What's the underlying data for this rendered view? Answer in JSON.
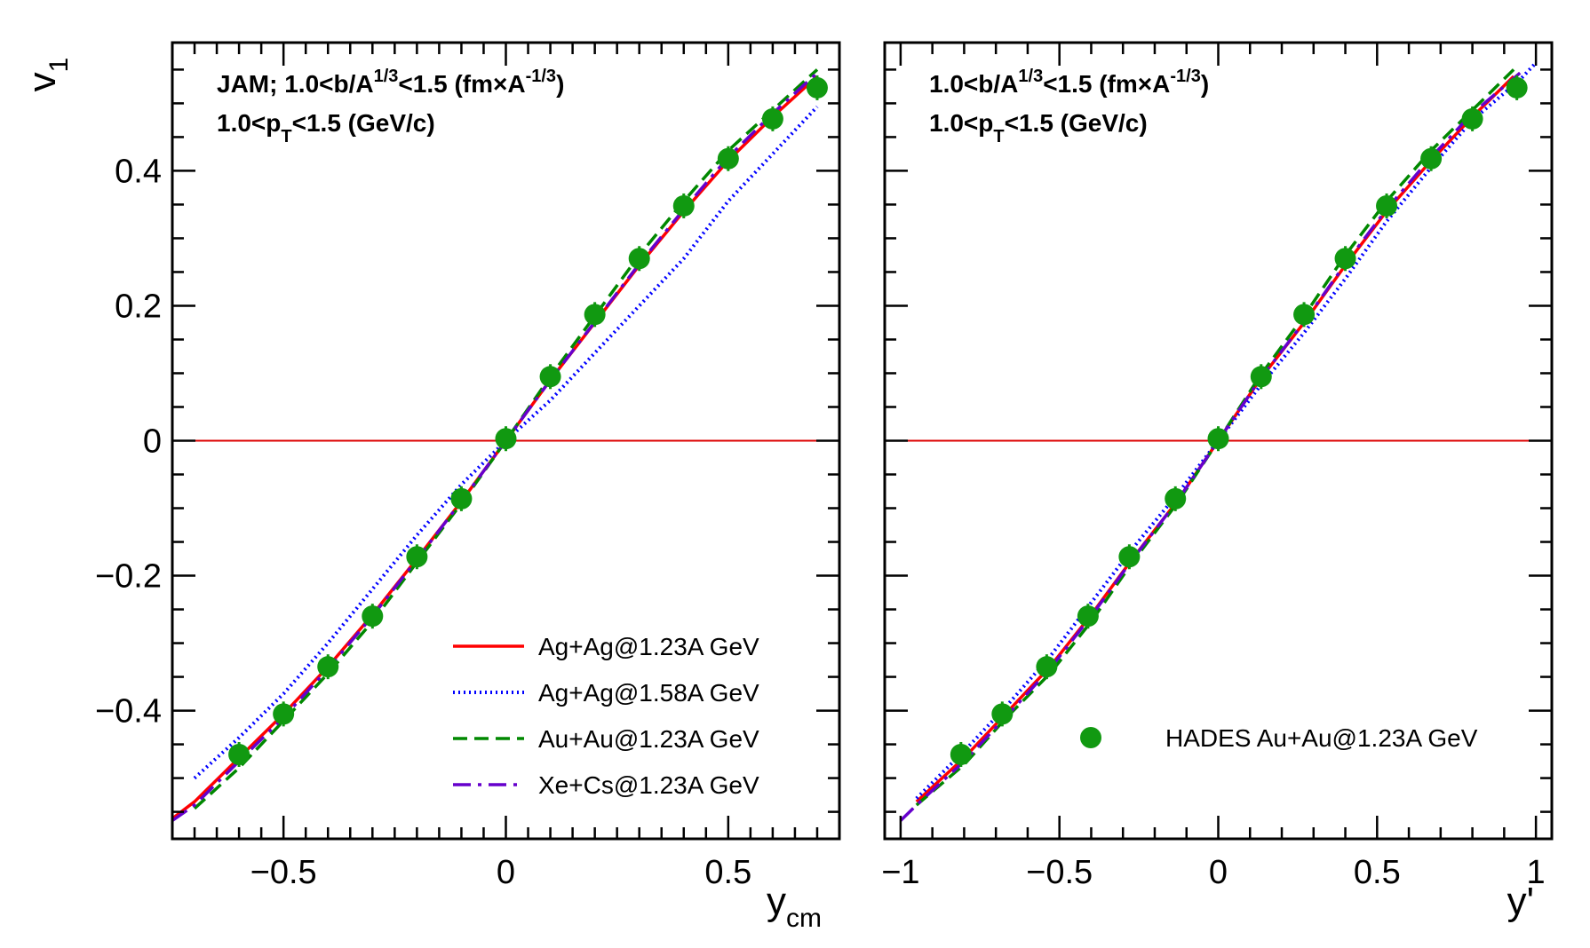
{
  "chart_data": [
    {
      "type": "line",
      "xlabel": "y",
      "xlabel_sub": "cm",
      "ylabel": "v",
      "ylabel_sub": "1",
      "xlim": [
        -0.75,
        0.75
      ],
      "ylim": [
        -0.59,
        0.59
      ],
      "xticks": [
        {
          "v": -0.5,
          "label": "−0.5"
        },
        {
          "v": 0,
          "label": "0"
        },
        {
          "v": 0.5,
          "label": "0.5"
        }
      ],
      "yticks": [
        {
          "v": 0.4,
          "label": "0.4"
        },
        {
          "v": 0.2,
          "label": "0.2"
        },
        {
          "v": 0,
          "label": "0"
        },
        {
          "v": -0.2,
          "label": "−0.2"
        },
        {
          "v": -0.4,
          "label": "−0.4"
        }
      ],
      "annotation_line1": {
        "main": "JAM; 1.0<b/A",
        "sup1": "1/3",
        "mid": "<1.5 (fm×A",
        "sup2": "-1/3",
        "end": ")"
      },
      "annotation_line2": {
        "main": "1.0<p",
        "sub": "T",
        "end": "<1.5 (GeV/c)"
      },
      "legend": "bottom-right",
      "reference_line_y": 0,
      "series": [
        {
          "name": "Ag+Ag@1.23A GeV",
          "color": "#ff0000",
          "style": "solid",
          "x": [
            -0.75,
            -0.7,
            -0.6,
            -0.5,
            -0.4,
            -0.3,
            -0.2,
            -0.1,
            0,
            0.1,
            0.2,
            0.3,
            0.4,
            0.5,
            0.6,
            0.7
          ],
          "y": [
            -0.56,
            -0.535,
            -0.47,
            -0.405,
            -0.335,
            -0.258,
            -0.175,
            -0.09,
            0,
            0.09,
            0.175,
            0.26,
            0.34,
            0.415,
            0.48,
            0.54
          ]
        },
        {
          "name": "Ag+Ag@1.58A GeV",
          "color": "#0000ff",
          "style": "dotted",
          "x": [
            -0.7,
            -0.6,
            -0.5,
            -0.4,
            -0.3,
            -0.2,
            -0.1,
            0,
            0.1,
            0.2,
            0.3,
            0.4,
            0.5,
            0.6,
            0.7
          ],
          "y": [
            -0.5,
            -0.44,
            -0.375,
            -0.3,
            -0.22,
            -0.14,
            -0.065,
            0,
            0.06,
            0.13,
            0.2,
            0.27,
            0.355,
            0.425,
            0.495
          ]
        },
        {
          "name": "Au+Au@1.23A GeV",
          "color": "#008800",
          "style": "dashed",
          "x": [
            -0.7,
            -0.6,
            -0.5,
            -0.4,
            -0.3,
            -0.2,
            -0.1,
            0,
            0.1,
            0.2,
            0.3,
            0.4,
            0.5,
            0.6,
            0.7
          ],
          "y": [
            -0.545,
            -0.485,
            -0.415,
            -0.345,
            -0.268,
            -0.18,
            -0.093,
            0,
            0.095,
            0.185,
            0.275,
            0.355,
            0.43,
            0.49,
            0.55
          ]
        },
        {
          "name": "Xe+Cs@1.23A GeV",
          "color": "#6600cc",
          "style": "dashdot",
          "x": [
            -0.75,
            -0.7,
            -0.6,
            -0.5,
            -0.4,
            -0.3,
            -0.2,
            -0.1,
            0,
            0.1,
            0.2,
            0.3,
            0.4,
            0.5,
            0.6,
            0.7
          ],
          "y": [
            -0.563,
            -0.54,
            -0.475,
            -0.41,
            -0.338,
            -0.26,
            -0.176,
            -0.09,
            0,
            0.09,
            0.176,
            0.262,
            0.343,
            0.42,
            0.485,
            0.545
          ]
        },
        {
          "name": "",
          "color": "#119911",
          "style": "marker",
          "x": [
            -0.6,
            -0.5,
            -0.4,
            -0.3,
            -0.2,
            -0.1,
            0,
            0.1,
            0.2,
            0.3,
            0.4,
            0.5,
            0.6,
            0.7
          ],
          "y": [
            -0.465,
            -0.405,
            -0.335,
            -0.26,
            -0.172,
            -0.086,
            0.003,
            0.095,
            0.187,
            0.27,
            0.348,
            0.418,
            0.477,
            0.523
          ]
        }
      ]
    },
    {
      "type": "line",
      "xlabel": "y'",
      "ylabel": "",
      "xlim": [
        -1.05,
        1.05
      ],
      "ylim": [
        -0.59,
        0.59
      ],
      "xticks": [
        {
          "v": -1,
          "label": "−1"
        },
        {
          "v": -0.5,
          "label": "−0.5"
        },
        {
          "v": 0,
          "label": "0"
        },
        {
          "v": 0.5,
          "label": "0.5"
        },
        {
          "v": 1,
          "label": "1"
        }
      ],
      "yticks": [
        {
          "v": 0.4,
          "label": ""
        },
        {
          "v": 0.2,
          "label": ""
        },
        {
          "v": 0,
          "label": ""
        },
        {
          "v": -0.2,
          "label": ""
        },
        {
          "v": -0.4,
          "label": ""
        }
      ],
      "annotation_line1": {
        "main": "1.0<b/A",
        "sup1": "1/3",
        "mid": "<1.5 (fm×A",
        "sup2": "-1/3",
        "end": ")"
      },
      "annotation_line2": {
        "main": "1.0<p",
        "sub": "T",
        "end": "<1.5 (GeV/c)"
      },
      "legend": "bottom-right",
      "reference_line_y": 0,
      "series": [
        {
          "name": "",
          "color": "#ff0000",
          "style": "solid",
          "x": [
            -0.95,
            -0.8,
            -0.67,
            -0.53,
            -0.4,
            -0.27,
            -0.13,
            0,
            0.13,
            0.27,
            0.4,
            0.53,
            0.67,
            0.8,
            0.93
          ],
          "y": [
            -0.535,
            -0.47,
            -0.405,
            -0.335,
            -0.258,
            -0.175,
            -0.09,
            0,
            0.09,
            0.175,
            0.26,
            0.34,
            0.415,
            0.48,
            0.54
          ]
        },
        {
          "name": "",
          "color": "#0000ff",
          "style": "dotted",
          "x": [
            -0.95,
            -0.8,
            -0.67,
            -0.53,
            -0.4,
            -0.27,
            -0.13,
            0,
            0.13,
            0.27,
            0.4,
            0.53,
            0.67,
            0.8,
            0.95,
            1.0
          ],
          "y": [
            -0.53,
            -0.46,
            -0.395,
            -0.32,
            -0.24,
            -0.16,
            -0.08,
            0,
            0.08,
            0.16,
            0.24,
            0.325,
            0.405,
            0.475,
            0.535,
            0.56
          ]
        },
        {
          "name": "",
          "color": "#008800",
          "style": "dashed",
          "x": [
            -0.95,
            -0.8,
            -0.67,
            -0.53,
            -0.4,
            -0.27,
            -0.13,
            0,
            0.13,
            0.27,
            0.4,
            0.53,
            0.67,
            0.8,
            0.93
          ],
          "y": [
            -0.54,
            -0.48,
            -0.412,
            -0.345,
            -0.268,
            -0.18,
            -0.093,
            0,
            0.095,
            0.185,
            0.275,
            0.355,
            0.43,
            0.49,
            0.55
          ]
        },
        {
          "name": "",
          "color": "#6600cc",
          "style": "dashdot",
          "x": [
            -1.0,
            -0.95,
            -0.8,
            -0.67,
            -0.53,
            -0.4,
            -0.27,
            -0.13,
            0,
            0.13,
            0.27,
            0.4,
            0.53,
            0.67,
            0.8,
            0.95
          ],
          "y": [
            -0.563,
            -0.54,
            -0.475,
            -0.41,
            -0.338,
            -0.26,
            -0.176,
            -0.09,
            0,
            0.09,
            0.176,
            0.262,
            0.343,
            0.42,
            0.485,
            0.545
          ]
        },
        {
          "name": "HADES Au+Au@1.23A GeV",
          "color": "#119911",
          "style": "marker",
          "x": [
            -0.81,
            -0.68,
            -0.54,
            -0.41,
            -0.28,
            -0.135,
            0,
            0.135,
            0.27,
            0.4,
            0.53,
            0.67,
            0.8,
            0.94
          ],
          "y": [
            -0.465,
            -0.405,
            -0.335,
            -0.26,
            -0.172,
            -0.086,
            0.003,
            0.095,
            0.187,
            0.27,
            0.348,
            0.418,
            0.477,
            0.523
          ]
        }
      ]
    }
  ]
}
